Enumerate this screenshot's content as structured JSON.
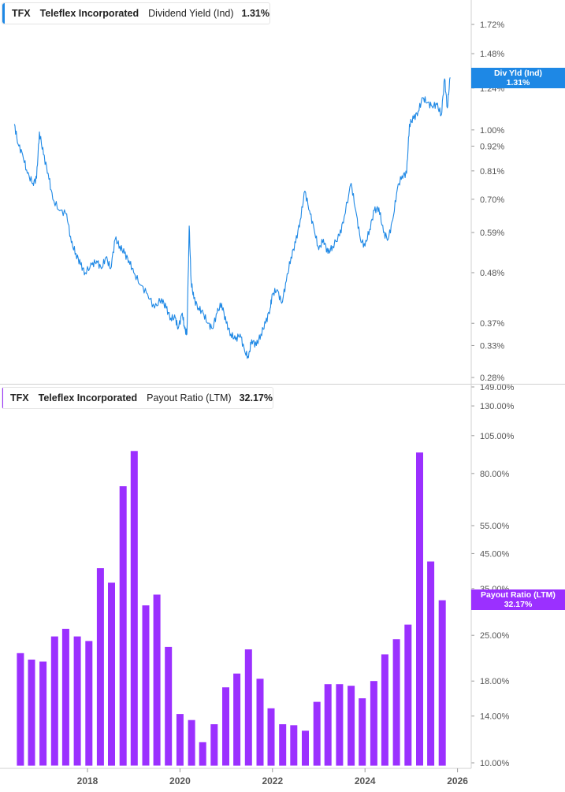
{
  "colors": {
    "yield": "#1e88e5",
    "payout": "#9b30ff",
    "axis_text": "#555555",
    "gridline": "#d0d0d0"
  },
  "legend_top": {
    "ticker": "TFX",
    "company": "Teleflex Incorporated",
    "metric": "Dividend Yield (Ind)",
    "value": "1.31%"
  },
  "legend_bottom": {
    "ticker": "TFX",
    "company": "Teleflex Incorporated",
    "metric": "Payout Ratio (LTM)",
    "value": "32.17%"
  },
  "tag_top": {
    "line1": "Div Yld (Ind)",
    "line2": "1.31%"
  },
  "tag_bottom": {
    "line1": "Payout Ratio (LTM)",
    "line2": "32.17%"
  },
  "chart_data": [
    {
      "type": "line",
      "title": "Dividend Yield (Ind)",
      "series": [
        {
          "name": "Dividend Yield (Ind)",
          "color": "#1e88e5"
        }
      ],
      "y_scale": "log",
      "ylim": [
        0.27,
        2.0
      ],
      "y_ticks": [
        {
          "v": 1.72,
          "label": "1.72%"
        },
        {
          "v": 1.48,
          "label": "1.48%"
        },
        {
          "v": 1.24,
          "label": "1.24%"
        },
        {
          "v": 1.0,
          "label": "1.00%"
        },
        {
          "v": 0.92,
          "label": "0.92%"
        },
        {
          "v": 0.81,
          "label": "0.81%"
        },
        {
          "v": 0.7,
          "label": "0.70%"
        },
        {
          "v": 0.59,
          "label": "0.59%"
        },
        {
          "v": 0.48,
          "label": "0.48%"
        },
        {
          "v": 0.37,
          "label": "0.37%"
        },
        {
          "v": 0.33,
          "label": "0.33%"
        },
        {
          "v": 0.28,
          "label": "0.28%"
        }
      ],
      "x_range": [
        2016.4,
        2026.4
      ],
      "points": [
        [
          2016.42,
          1.03
        ],
        [
          2016.5,
          0.93
        ],
        [
          2016.6,
          0.88
        ],
        [
          2016.7,
          0.8
        ],
        [
          2016.82,
          0.76
        ],
        [
          2016.9,
          0.78
        ],
        [
          2016.96,
          0.99
        ],
        [
          2017.05,
          0.88
        ],
        [
          2017.15,
          0.8
        ],
        [
          2017.25,
          0.7
        ],
        [
          2017.4,
          0.66
        ],
        [
          2017.55,
          0.65
        ],
        [
          2017.65,
          0.56
        ],
        [
          2017.75,
          0.53
        ],
        [
          2017.85,
          0.5
        ],
        [
          2017.95,
          0.48
        ],
        [
          2018.1,
          0.5
        ],
        [
          2018.2,
          0.51
        ],
        [
          2018.3,
          0.49
        ],
        [
          2018.4,
          0.52
        ],
        [
          2018.5,
          0.49
        ],
        [
          2018.6,
          0.57
        ],
        [
          2018.7,
          0.55
        ],
        [
          2018.8,
          0.53
        ],
        [
          2018.9,
          0.51
        ],
        [
          2019.0,
          0.48
        ],
        [
          2019.15,
          0.45
        ],
        [
          2019.3,
          0.43
        ],
        [
          2019.45,
          0.4
        ],
        [
          2019.6,
          0.42
        ],
        [
          2019.7,
          0.4
        ],
        [
          2019.8,
          0.38
        ],
        [
          2019.9,
          0.38
        ],
        [
          2019.96,
          0.36
        ],
        [
          2020.05,
          0.39
        ],
        [
          2020.1,
          0.36
        ],
        [
          2020.15,
          0.35
        ],
        [
          2020.2,
          0.61
        ],
        [
          2020.24,
          0.46
        ],
        [
          2020.3,
          0.42
        ],
        [
          2020.4,
          0.4
        ],
        [
          2020.5,
          0.39
        ],
        [
          2020.6,
          0.37
        ],
        [
          2020.7,
          0.36
        ],
        [
          2020.8,
          0.39
        ],
        [
          2020.9,
          0.41
        ],
        [
          2021.0,
          0.37
        ],
        [
          2021.1,
          0.35
        ],
        [
          2021.2,
          0.34
        ],
        [
          2021.3,
          0.35
        ],
        [
          2021.4,
          0.32
        ],
        [
          2021.48,
          0.31
        ],
        [
          2021.55,
          0.34
        ],
        [
          2021.65,
          0.33
        ],
        [
          2021.75,
          0.35
        ],
        [
          2021.85,
          0.37
        ],
        [
          2021.95,
          0.4
        ],
        [
          2022.0,
          0.43
        ],
        [
          2022.1,
          0.44
        ],
        [
          2022.2,
          0.41
        ],
        [
          2022.3,
          0.46
        ],
        [
          2022.4,
          0.52
        ],
        [
          2022.5,
          0.56
        ],
        [
          2022.6,
          0.63
        ],
        [
          2022.7,
          0.73
        ],
        [
          2022.8,
          0.66
        ],
        [
          2022.9,
          0.6
        ],
        [
          2023.0,
          0.54
        ],
        [
          2023.1,
          0.57
        ],
        [
          2023.2,
          0.53
        ],
        [
          2023.3,
          0.55
        ],
        [
          2023.45,
          0.58
        ],
        [
          2023.55,
          0.64
        ],
        [
          2023.7,
          0.76
        ],
        [
          2023.8,
          0.66
        ],
        [
          2023.9,
          0.57
        ],
        [
          2024.0,
          0.55
        ],
        [
          2024.1,
          0.6
        ],
        [
          2024.2,
          0.66
        ],
        [
          2024.3,
          0.67
        ],
        [
          2024.4,
          0.59
        ],
        [
          2024.5,
          0.57
        ],
        [
          2024.6,
          0.63
        ],
        [
          2024.7,
          0.74
        ],
        [
          2024.8,
          0.79
        ],
        [
          2024.9,
          0.8
        ],
        [
          2024.96,
          1.03
        ],
        [
          2025.05,
          1.06
        ],
        [
          2025.15,
          1.1
        ],
        [
          2025.25,
          1.18
        ],
        [
          2025.35,
          1.15
        ],
        [
          2025.45,
          1.13
        ],
        [
          2025.55,
          1.14
        ],
        [
          2025.65,
          1.08
        ],
        [
          2025.72,
          1.3
        ],
        [
          2025.78,
          1.12
        ],
        [
          2025.84,
          1.31
        ]
      ]
    },
    {
      "type": "bar",
      "title": "Payout Ratio (LTM)",
      "series": [
        {
          "name": "Payout Ratio (LTM)",
          "color": "#9b30ff"
        }
      ],
      "y_scale": "log",
      "ylim": [
        9.8,
        150
      ],
      "y_ticks": [
        {
          "v": 149,
          "label": "149.00%"
        },
        {
          "v": 130,
          "label": "130.00%"
        },
        {
          "v": 105,
          "label": "105.00%"
        },
        {
          "v": 80,
          "label": "80.00%"
        },
        {
          "v": 55,
          "label": "55.00%"
        },
        {
          "v": 45,
          "label": "45.00%"
        },
        {
          "v": 35,
          "label": "35.00%"
        },
        {
          "v": 25,
          "label": "25.00%"
        },
        {
          "v": 18,
          "label": "18.00%"
        },
        {
          "v": 14,
          "label": "14.00%"
        },
        {
          "v": 10,
          "label": "10.00%"
        }
      ],
      "x_range": [
        2016.4,
        2026.4
      ],
      "bars": [
        [
          2016.55,
          22.0
        ],
        [
          2016.79,
          21.0
        ],
        [
          2017.04,
          20.7
        ],
        [
          2017.29,
          24.8
        ],
        [
          2017.53,
          26.2
        ],
        [
          2017.78,
          24.8
        ],
        [
          2018.03,
          24.0
        ],
        [
          2018.28,
          40.5
        ],
        [
          2018.52,
          36.5
        ],
        [
          2018.77,
          73.0
        ],
        [
          2019.01,
          94.0
        ],
        [
          2019.26,
          31.0
        ],
        [
          2019.5,
          33.5
        ],
        [
          2019.75,
          23.0
        ],
        [
          2020.0,
          14.2
        ],
        [
          2020.25,
          13.6
        ],
        [
          2020.49,
          11.6
        ],
        [
          2020.74,
          13.2
        ],
        [
          2020.99,
          17.2
        ],
        [
          2021.23,
          19.0
        ],
        [
          2021.48,
          22.6
        ],
        [
          2021.73,
          18.3
        ],
        [
          2021.97,
          14.8
        ],
        [
          2022.22,
          13.2
        ],
        [
          2022.46,
          13.1
        ],
        [
          2022.71,
          12.6
        ],
        [
          2022.96,
          15.5
        ],
        [
          2023.2,
          17.6
        ],
        [
          2023.45,
          17.6
        ],
        [
          2023.7,
          17.4
        ],
        [
          2023.94,
          15.9
        ],
        [
          2024.19,
          18.0
        ],
        [
          2024.43,
          21.8
        ],
        [
          2024.68,
          24.3
        ],
        [
          2024.93,
          27.0
        ],
        [
          2025.18,
          93.0
        ],
        [
          2025.42,
          42.5
        ],
        [
          2025.67,
          32.17
        ]
      ],
      "x_ticks": [
        {
          "v": 2018,
          "label": "2018"
        },
        {
          "v": 2020,
          "label": "2020"
        },
        {
          "v": 2022,
          "label": "2022"
        },
        {
          "v": 2024,
          "label": "2024"
        },
        {
          "v": 2026,
          "label": "2026"
        }
      ]
    }
  ]
}
